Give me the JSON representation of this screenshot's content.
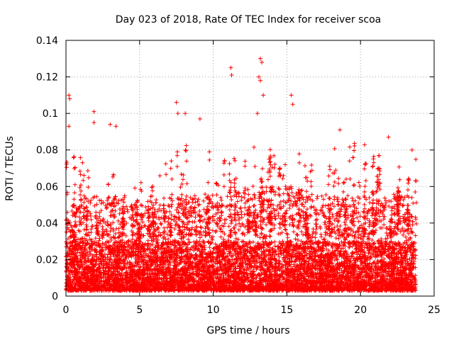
{
  "chart_data": {
    "type": "scatter",
    "title": "Day 023 of 2018, Rate Of TEC Index for receiver scoa",
    "xlabel": "GPS time / hours",
    "ylabel": "ROTI / TECUs",
    "xlim": [
      0,
      25
    ],
    "ylim": [
      0,
      0.14
    ],
    "x_ticks": [
      0,
      5,
      10,
      15,
      20,
      25
    ],
    "y_ticks": [
      0,
      0.02,
      0.04,
      0.06,
      0.08,
      0.1,
      0.12,
      0.14
    ],
    "x_tick_labels": [
      "0",
      "5",
      "10",
      "15",
      "20",
      "25"
    ],
    "y_tick_labels": [
      "0",
      "0.02",
      "0.04",
      "0.06",
      "0.08",
      "0.1",
      "0.12",
      "0.14"
    ],
    "grid": true,
    "marker": "+",
    "marker_color": "#ff0000",
    "data_range_hours": [
      0,
      23.75
    ],
    "notable_points": [
      {
        "x": 0.2,
        "y": 0.11
      },
      {
        "x": 0.25,
        "y": 0.108
      },
      {
        "x": 0.2,
        "y": 0.093
      },
      {
        "x": 1.9,
        "y": 0.101
      },
      {
        "x": 1.9,
        "y": 0.095
      },
      {
        "x": 3.0,
        "y": 0.094
      },
      {
        "x": 3.4,
        "y": 0.093
      },
      {
        "x": 7.5,
        "y": 0.106
      },
      {
        "x": 7.6,
        "y": 0.1
      },
      {
        "x": 8.1,
        "y": 0.1
      },
      {
        "x": 9.1,
        "y": 0.097
      },
      {
        "x": 11.2,
        "y": 0.125
      },
      {
        "x": 11.25,
        "y": 0.121
      },
      {
        "x": 13.2,
        "y": 0.13
      },
      {
        "x": 13.3,
        "y": 0.128
      },
      {
        "x": 13.1,
        "y": 0.12
      },
      {
        "x": 13.2,
        "y": 0.118
      },
      {
        "x": 13.4,
        "y": 0.11
      },
      {
        "x": 13.0,
        "y": 0.1
      },
      {
        "x": 15.3,
        "y": 0.11
      },
      {
        "x": 15.4,
        "y": 0.105
      },
      {
        "x": 18.6,
        "y": 0.091
      },
      {
        "x": 21.9,
        "y": 0.087
      },
      {
        "x": 23.5,
        "y": 0.08
      }
    ],
    "bands": [
      {
        "x_start": 0.0,
        "x_end": 1.0,
        "y_base_max": 0.05,
        "y_peak": 0.083
      },
      {
        "x_start": 1.0,
        "x_end": 2.5,
        "y_base_max": 0.055,
        "y_peak": 0.09
      },
      {
        "x_start": 2.5,
        "x_end": 4.0,
        "y_base_max": 0.055,
        "y_peak": 0.09
      },
      {
        "x_start": 4.0,
        "x_end": 6.5,
        "y_base_max": 0.05,
        "y_peak": 0.07
      },
      {
        "x_start": 6.5,
        "x_end": 8.5,
        "y_base_max": 0.055,
        "y_peak": 0.085
      },
      {
        "x_start": 8.5,
        "x_end": 11.0,
        "y_base_max": 0.055,
        "y_peak": 0.085
      },
      {
        "x_start": 11.0,
        "x_end": 13.0,
        "y_base_max": 0.055,
        "y_peak": 0.09
      },
      {
        "x_start": 13.0,
        "x_end": 14.5,
        "y_base_max": 0.06,
        "y_peak": 0.09
      },
      {
        "x_start": 14.5,
        "x_end": 16.0,
        "y_base_max": 0.06,
        "y_peak": 0.085
      },
      {
        "x_start": 16.0,
        "x_end": 18.5,
        "y_base_max": 0.055,
        "y_peak": 0.085
      },
      {
        "x_start": 18.5,
        "x_end": 21.0,
        "y_base_max": 0.055,
        "y_peak": 0.085
      },
      {
        "x_start": 21.0,
        "x_end": 22.5,
        "y_base_max": 0.055,
        "y_peak": 0.08
      },
      {
        "x_start": 22.5,
        "x_end": 23.75,
        "y_base_max": 0.055,
        "y_peak": 0.08
      }
    ],
    "y_floor": 0.003,
    "dense_core_max": 0.03
  }
}
